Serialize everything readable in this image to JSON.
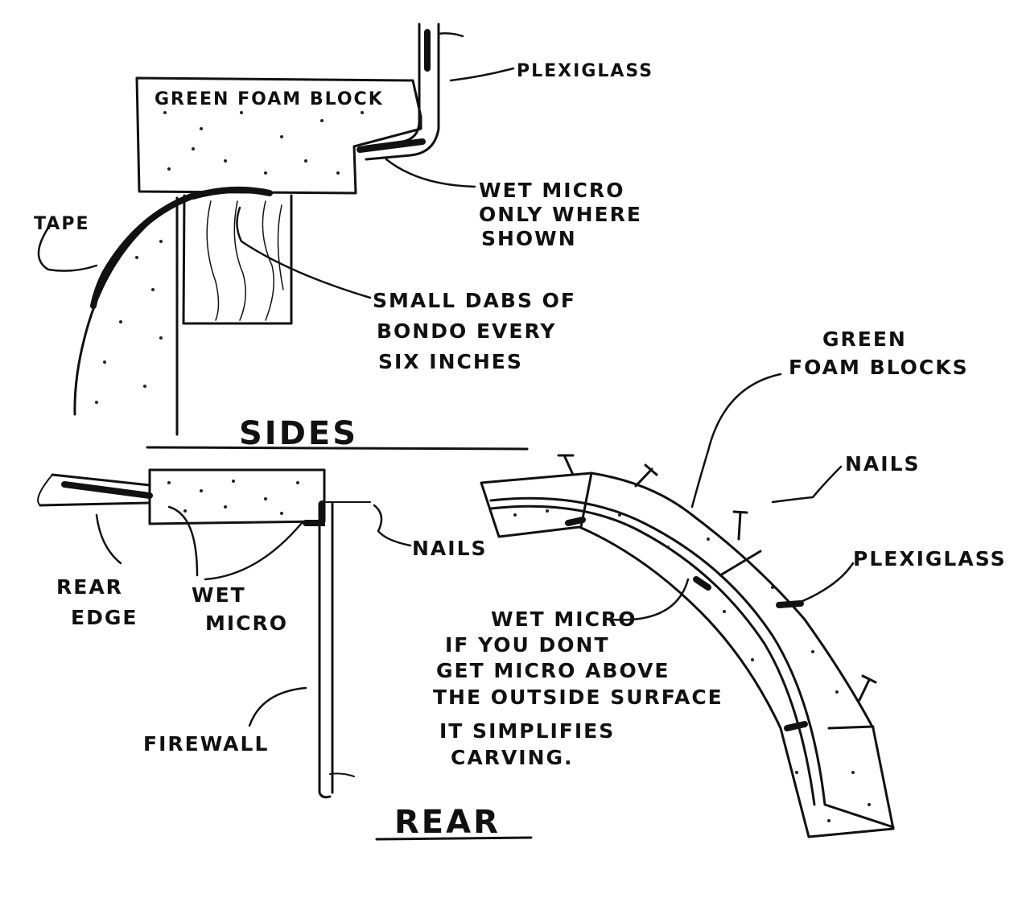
{
  "sides_section": {
    "heading": "SIDES",
    "labels": {
      "plexiglass": "PLEXIGLASS",
      "foam_block": "GREEN FOAM BLOCK",
      "wet_micro_line1": "WET MICRO",
      "wet_micro_line2": "ONLY WHERE",
      "wet_micro_line3": "SHOWN",
      "tape": "TAPE",
      "bondo_line1": "SMALL DABS OF",
      "bondo_line2": "BONDO EVERY",
      "bondo_line3": "SIX INCHES"
    }
  },
  "rear_section": {
    "heading": "REAR",
    "labels": {
      "rear_edge_line1": "REAR",
      "rear_edge_line2": "EDGE",
      "wet_micro_line1": "WET",
      "wet_micro_line2": "MICRO",
      "nails": "NAILS",
      "firewall": "FIREWALL"
    }
  },
  "curved_section": {
    "labels": {
      "foam_blocks_line1": "GREEN",
      "foam_blocks_line2": "FOAM BLOCKS",
      "nails": "NAILS",
      "plexiglass": "PLEXIGLASS",
      "note_line1": "WET MICRO",
      "note_line2": "IF YOU DONT",
      "note_line3": "GET MICRO ABOVE",
      "note_line4": "THE OUTSIDE SURFACE",
      "note_line5": "IT SIMPLIFIES",
      "note_line6": "CARVING."
    }
  }
}
